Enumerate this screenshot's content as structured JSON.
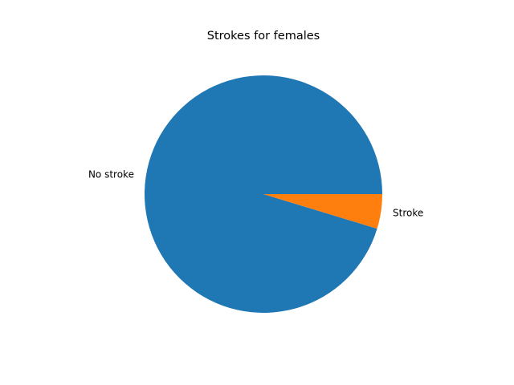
{
  "chart_data": {
    "type": "pie",
    "title": "Strokes for females",
    "labels": [
      "No stroke",
      "Stroke"
    ],
    "values": [
      95.29,
      4.71
    ],
    "colors": [
      "#1f77b4",
      "#ff7f0e"
    ],
    "start_angle_deg": 0,
    "direction": "counterclockwise",
    "legend": "none"
  }
}
